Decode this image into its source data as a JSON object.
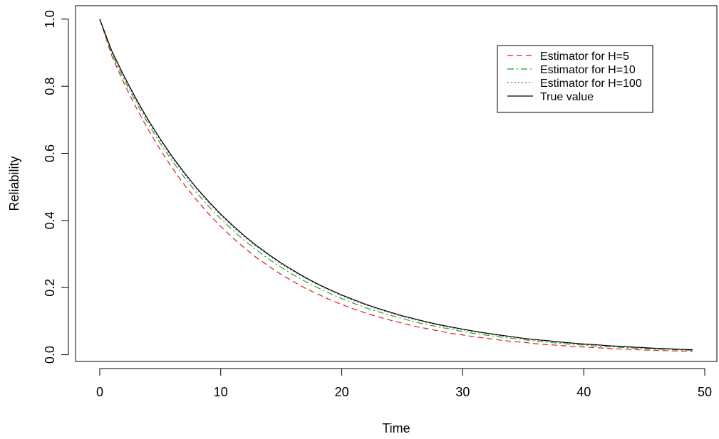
{
  "chart_data": {
    "type": "line",
    "title": "",
    "xlabel": "Time",
    "ylabel": "Reliability",
    "xlim": [
      -2,
      51
    ],
    "ylim": [
      -0.02,
      1.04
    ],
    "xticks": [
      0,
      10,
      20,
      30,
      40,
      50
    ],
    "yticks": [
      0.0,
      0.2,
      0.4,
      0.6,
      0.8,
      1.0
    ],
    "xtick_labels": [
      "0",
      "10",
      "20",
      "30",
      "40",
      "50"
    ],
    "ytick_labels": [
      "0.0",
      "0.2",
      "0.4",
      "0.6",
      "0.8",
      "1.0"
    ],
    "grid": false,
    "legend_position": "top-right",
    "x": [
      0,
      1,
      2,
      3,
      4,
      5,
      6,
      7,
      8,
      9,
      10,
      11,
      12,
      13,
      14,
      15,
      16,
      17,
      18,
      19,
      20,
      21,
      22,
      23,
      24,
      25,
      26,
      27,
      28,
      29,
      30,
      31,
      32,
      33,
      34,
      35,
      36,
      37,
      38,
      39,
      40,
      41,
      42,
      43,
      44,
      45,
      46,
      47,
      48,
      49
    ],
    "series": [
      {
        "name": "Estimator for H=5",
        "color": "#e41a1c",
        "dash": "dashed",
        "values": [
          1.0,
          0.89,
          0.809,
          0.737,
          0.671,
          0.611,
          0.556,
          0.506,
          0.461,
          0.42,
          0.382,
          0.348,
          0.317,
          0.288,
          0.263,
          0.239,
          0.218,
          0.198,
          0.181,
          0.164,
          0.15,
          0.136,
          0.124,
          0.113,
          0.103,
          0.094,
          0.085,
          0.078,
          0.071,
          0.064,
          0.059,
          0.053,
          0.049,
          0.044,
          0.04,
          0.037,
          0.033,
          0.03,
          0.028,
          0.025,
          0.023,
          0.021,
          0.019,
          0.017,
          0.016,
          0.014,
          0.013,
          0.012,
          0.011,
          0.01
        ]
      },
      {
        "name": "Estimator for H=10",
        "color": "#1fa81f",
        "dash": "dotdash",
        "values": [
          1.0,
          0.897,
          0.821,
          0.752,
          0.688,
          0.63,
          0.577,
          0.528,
          0.483,
          0.442,
          0.405,
          0.371,
          0.339,
          0.311,
          0.284,
          0.26,
          0.238,
          0.218,
          0.2,
          0.183,
          0.167,
          0.153,
          0.14,
          0.128,
          0.118,
          0.108,
          0.098,
          0.09,
          0.083,
          0.076,
          0.069,
          0.063,
          0.058,
          0.053,
          0.049,
          0.045,
          0.041,
          0.037,
          0.034,
          0.031,
          0.029,
          0.026,
          0.024,
          0.022,
          0.02,
          0.018,
          0.017,
          0.016,
          0.014,
          0.013
        ]
      },
      {
        "name": "Estimator for H=100",
        "color": "#6a6a6a",
        "dash": "dotted",
        "values": [
          1.0,
          0.9,
          0.827,
          0.759,
          0.696,
          0.639,
          0.586,
          0.538,
          0.494,
          0.453,
          0.416,
          0.381,
          0.35,
          0.321,
          0.295,
          0.27,
          0.248,
          0.228,
          0.209,
          0.192,
          0.176,
          0.161,
          0.148,
          0.136,
          0.125,
          0.114,
          0.105,
          0.096,
          0.088,
          0.081,
          0.074,
          0.068,
          0.063,
          0.057,
          0.053,
          0.048,
          0.044,
          0.041,
          0.037,
          0.034,
          0.031,
          0.029,
          0.026,
          0.024,
          0.022,
          0.02,
          0.019,
          0.017,
          0.016,
          0.015
        ]
      },
      {
        "name": "True value",
        "color": "#000000",
        "dash": "solid",
        "values": [
          1.0,
          0.905,
          0.831,
          0.763,
          0.7,
          0.643,
          0.59,
          0.542,
          0.497,
          0.457,
          0.419,
          0.385,
          0.353,
          0.324,
          0.298,
          0.273,
          0.251,
          0.23,
          0.211,
          0.194,
          0.178,
          0.164,
          0.15,
          0.138,
          0.127,
          0.116,
          0.107,
          0.098,
          0.09,
          0.083,
          0.076,
          0.07,
          0.064,
          0.059,
          0.054,
          0.049,
          0.045,
          0.042,
          0.038,
          0.035,
          0.032,
          0.03,
          0.027,
          0.025,
          0.023,
          0.021,
          0.019,
          0.018,
          0.016,
          0.015
        ]
      }
    ]
  }
}
